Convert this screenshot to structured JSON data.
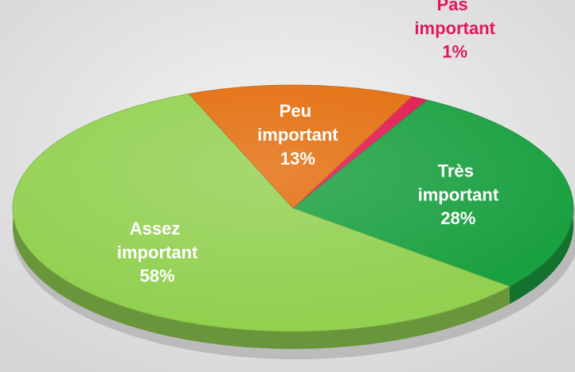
{
  "chart_data": {
    "type": "pie",
    "categories": [
      "Pas important",
      "Très important",
      "Assez important",
      "Peu important"
    ],
    "values": [
      1,
      28,
      58,
      13
    ],
    "value_labels": [
      "1%",
      "28%",
      "58%",
      "13%"
    ],
    "colors": [
      "#e0184e",
      "#1aa040",
      "#92d050",
      "#e36c0a"
    ],
    "label_colors": [
      "#e0185a",
      "#ffffff",
      "#ffffff",
      "#ffffff"
    ]
  }
}
